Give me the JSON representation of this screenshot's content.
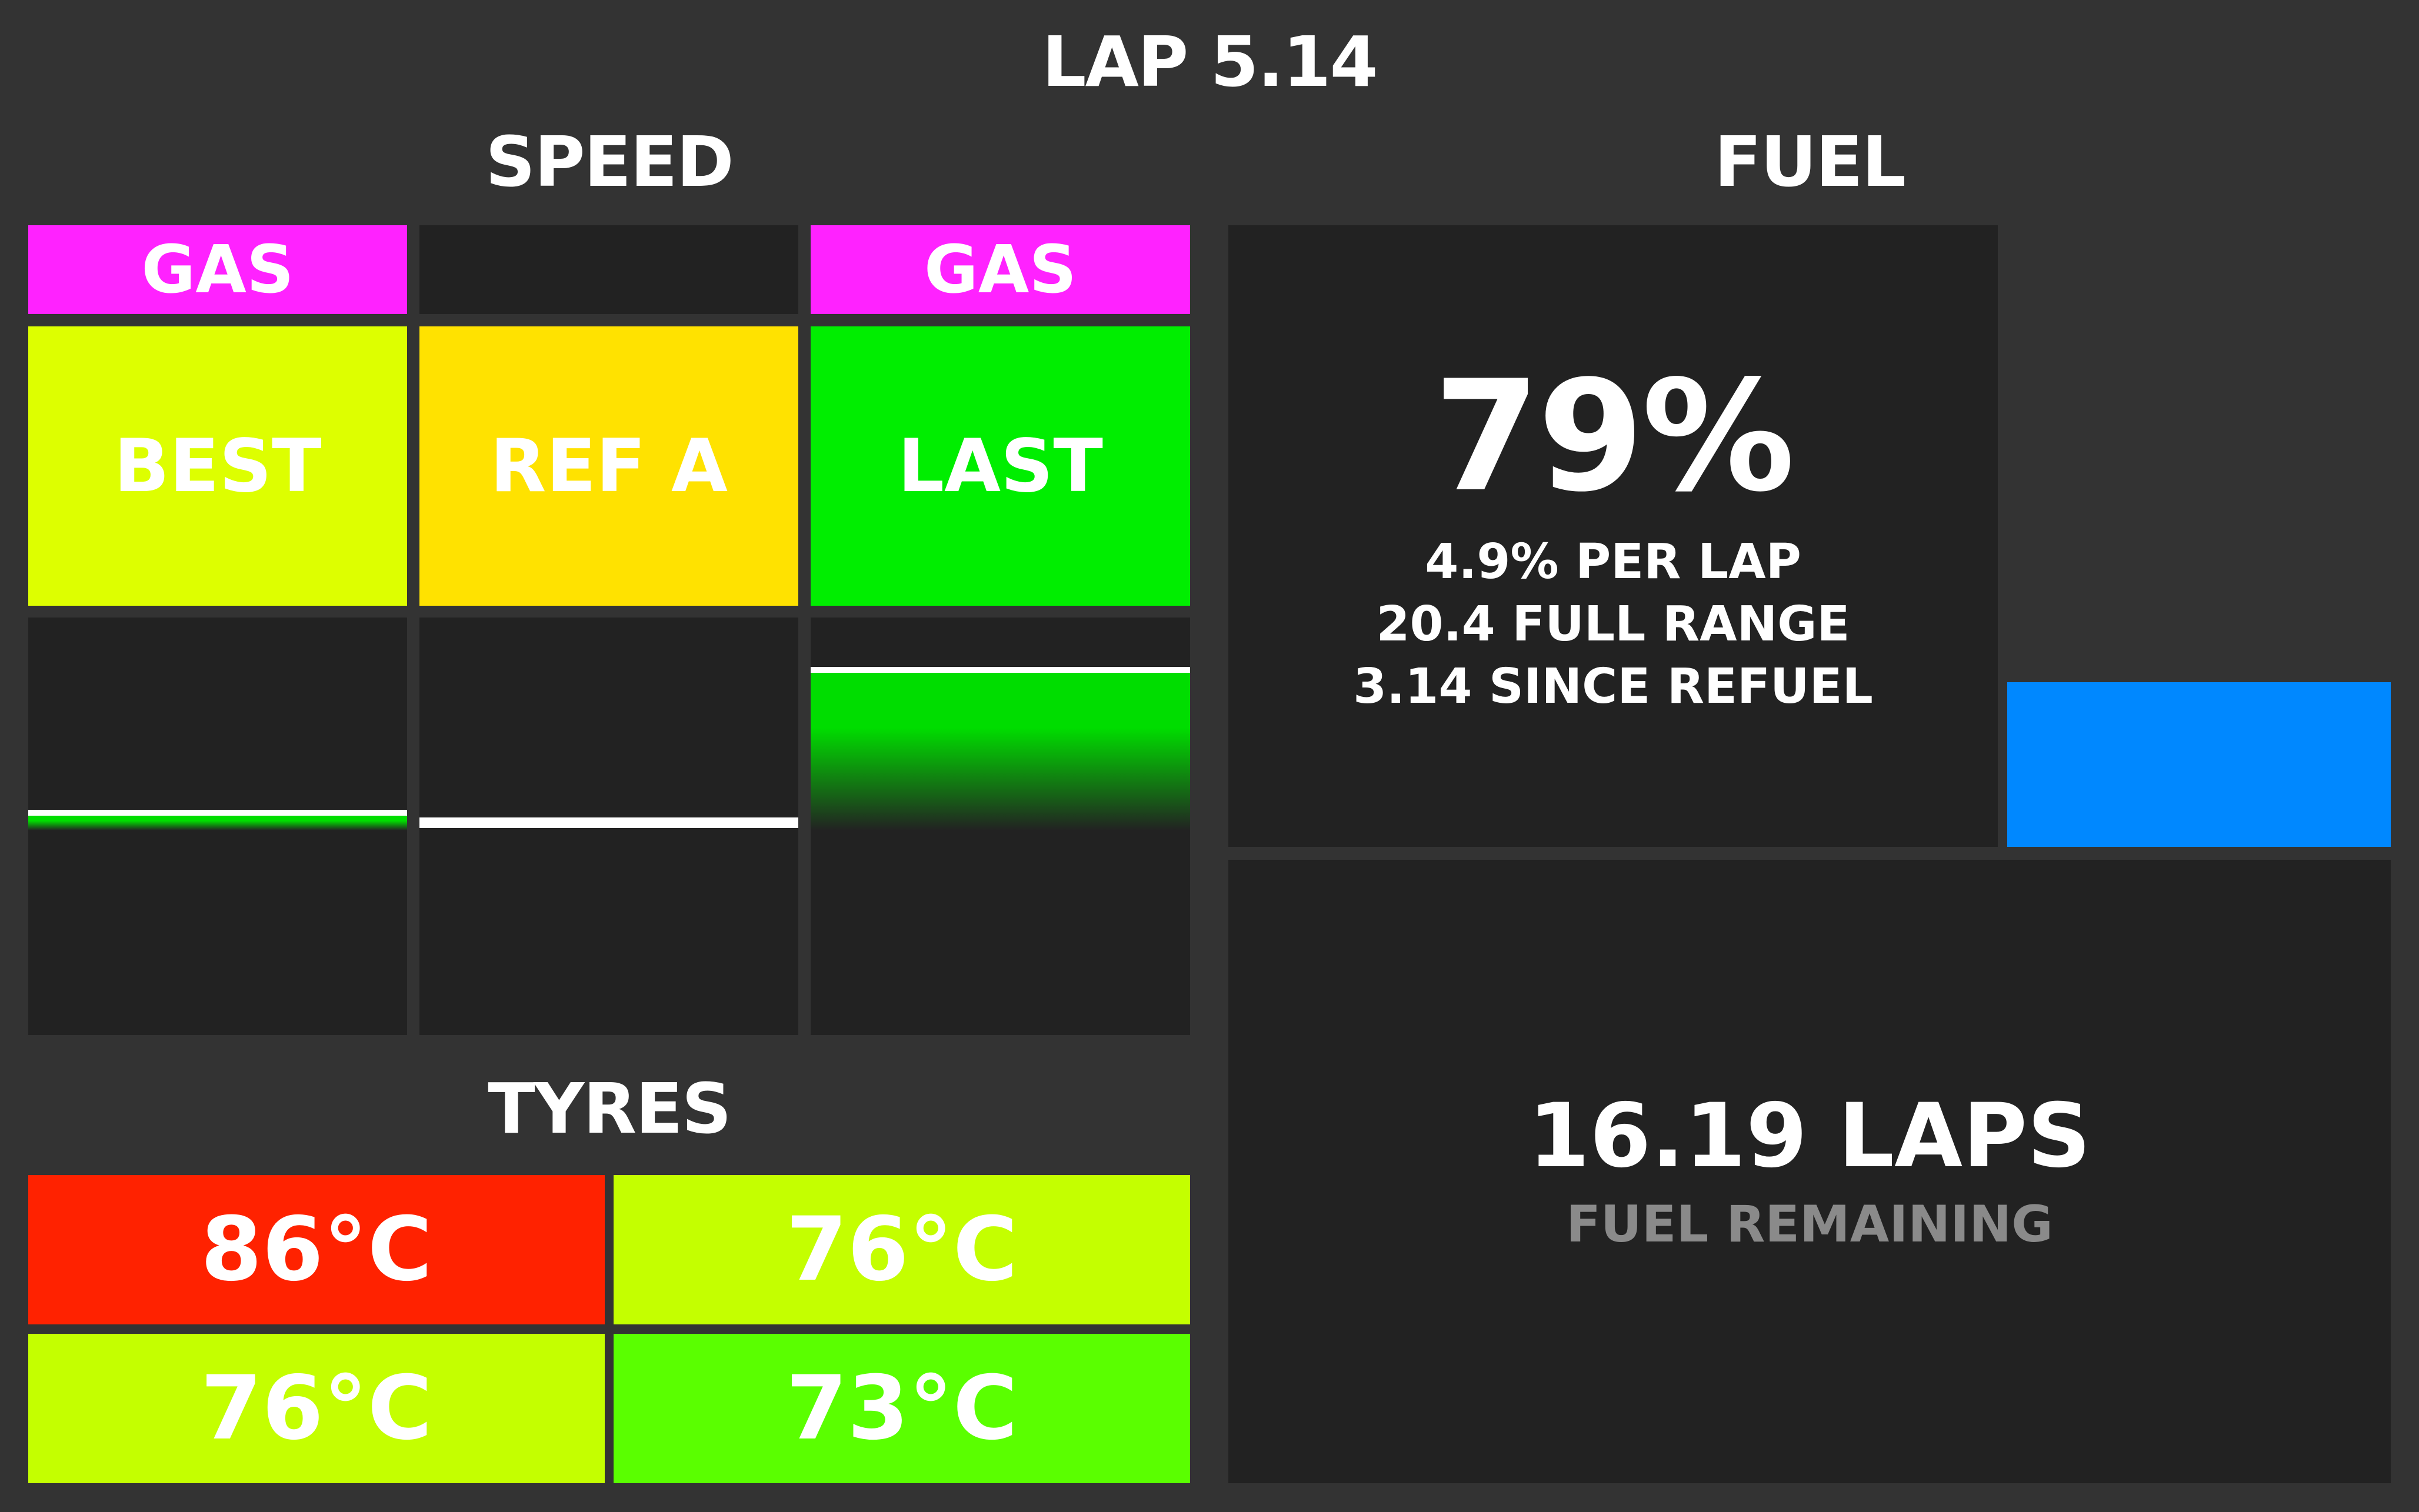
{
  "header": {
    "lap": "LAP 5.14"
  },
  "speed": {
    "title": "SPEED",
    "columns": [
      {
        "tag": "GAS",
        "tag_color": "#ff22ff",
        "label": "BEST",
        "label_color": "#ddff00",
        "bar_fill_color": "#00dd00",
        "bar_fill_level": 0.07
      },
      {
        "tag": "",
        "tag_color": "#222222",
        "label": "REF A",
        "label_color": "#ffe200",
        "bar_fill_color": "#00dd00",
        "bar_fill_level": 0.0
      },
      {
        "tag": "GAS",
        "tag_color": "#ff22ff",
        "label": "LAST",
        "label_color": "#00ee00",
        "bar_fill_color": "#00dd00",
        "bar_fill_level": 0.76
      }
    ]
  },
  "tyres": {
    "title": "TYRES",
    "values": [
      {
        "temp": "86°C",
        "color": "#ff2200"
      },
      {
        "temp": "76°C",
        "color": "#c4ff00"
      },
      {
        "temp": "76°C",
        "color": "#c4ff00"
      },
      {
        "temp": "73°C",
        "color": "#5aff00"
      }
    ]
  },
  "fuel": {
    "title": "FUEL",
    "percent": "79%",
    "per_lap": "4.9% PER LAP",
    "full_range": "20.4 FULL RANGE",
    "since_refuel": "3.14 SINCE REFUEL",
    "gauge_color": "#0088ff",
    "laps": "16.19 LAPS",
    "laps_label": "FUEL REMAINING"
  }
}
